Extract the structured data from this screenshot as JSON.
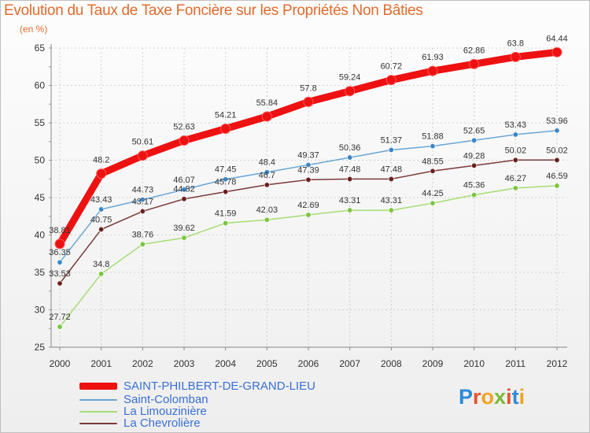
{
  "title": "Evolution du Taux de Taxe Foncière sur les Propriétés Non Bâties",
  "unit_label": "(en %)",
  "brand": {
    "text": "Proxiti",
    "letters": [
      "P",
      "r",
      "o",
      "x",
      "i",
      "t",
      "i"
    ],
    "colors": [
      "#2e8bd8",
      "#e8522b",
      "#f2a21e",
      "#7cb935",
      "#e8522b",
      "#2e8bd8",
      "#f2a21e"
    ]
  },
  "chart_data": {
    "type": "line",
    "title": "Evolution du Taux de Taxe Foncière sur les Propriétés Non Bâties",
    "ylabel": "(en %)",
    "xlabel": "",
    "ylim": [
      25,
      65
    ],
    "yticks": [
      25,
      30,
      35,
      40,
      45,
      50,
      55,
      60,
      65
    ],
    "x": [
      "2000",
      "2001",
      "2002",
      "2003",
      "2004",
      "2005",
      "2006",
      "2007",
      "2008",
      "2009",
      "2010",
      "2011",
      "2012"
    ],
    "legend_position": "bottom-left",
    "series": [
      {
        "name": "SAINT-PHILBERT-DE-GRAND-LIEU",
        "color": "#ee1111",
        "emphasis": true,
        "values": [
          38.81,
          48.2,
          50.61,
          52.63,
          54.21,
          55.84,
          57.8,
          59.24,
          60.72,
          61.93,
          62.86,
          63.8,
          64.44
        ],
        "labels": [
          "38.81",
          "48.2",
          "50.61",
          "52.63",
          "54.21",
          "55.84",
          "57.8",
          "59.24",
          "60.72",
          "61.93",
          "62.86",
          "63.8",
          "64.44"
        ]
      },
      {
        "name": "Saint-Colomban",
        "color": "#6aa6d6",
        "marker": "#3a86c8",
        "emphasis": false,
        "values": [
          36.35,
          43.43,
          44.73,
          46.07,
          47.45,
          48.4,
          49.37,
          50.36,
          51.37,
          51.88,
          52.65,
          53.43,
          53.96
        ],
        "labels": [
          "36.35",
          "43.43",
          "44.73",
          "46.07",
          "47.45",
          "48.4",
          "49.37",
          "50.36",
          "51.37",
          "51.88",
          "52.65",
          "53.43",
          "53.96"
        ]
      },
      {
        "name": "La Limouzinière",
        "color": "#a7dc74",
        "marker": "#7cc63e",
        "emphasis": false,
        "values": [
          27.72,
          34.8,
          38.76,
          39.62,
          41.59,
          42.03,
          42.69,
          43.31,
          43.31,
          44.25,
          45.36,
          46.27,
          46.59
        ],
        "labels": [
          "27.72",
          "34.8",
          "38.76",
          "39.62",
          "41.59",
          "42.03",
          "42.69",
          "43.31",
          "43.31",
          "44.25",
          "45.36",
          "46.27",
          "46.59"
        ]
      },
      {
        "name": "La Chevrolière",
        "color": "#7a3a3a",
        "marker": "#6b1f1f",
        "emphasis": false,
        "values": [
          33.53,
          40.75,
          43.17,
          44.82,
          45.78,
          46.7,
          47.39,
          47.48,
          47.48,
          48.55,
          49.28,
          50.02,
          50.02
        ],
        "labels": [
          "33.53",
          "40.75",
          "43.17",
          "44.82",
          "45.78",
          "46.7",
          "47.39",
          "47.48",
          "47.48",
          "48.55",
          "49.28",
          "50.02",
          "50.02"
        ]
      }
    ]
  }
}
